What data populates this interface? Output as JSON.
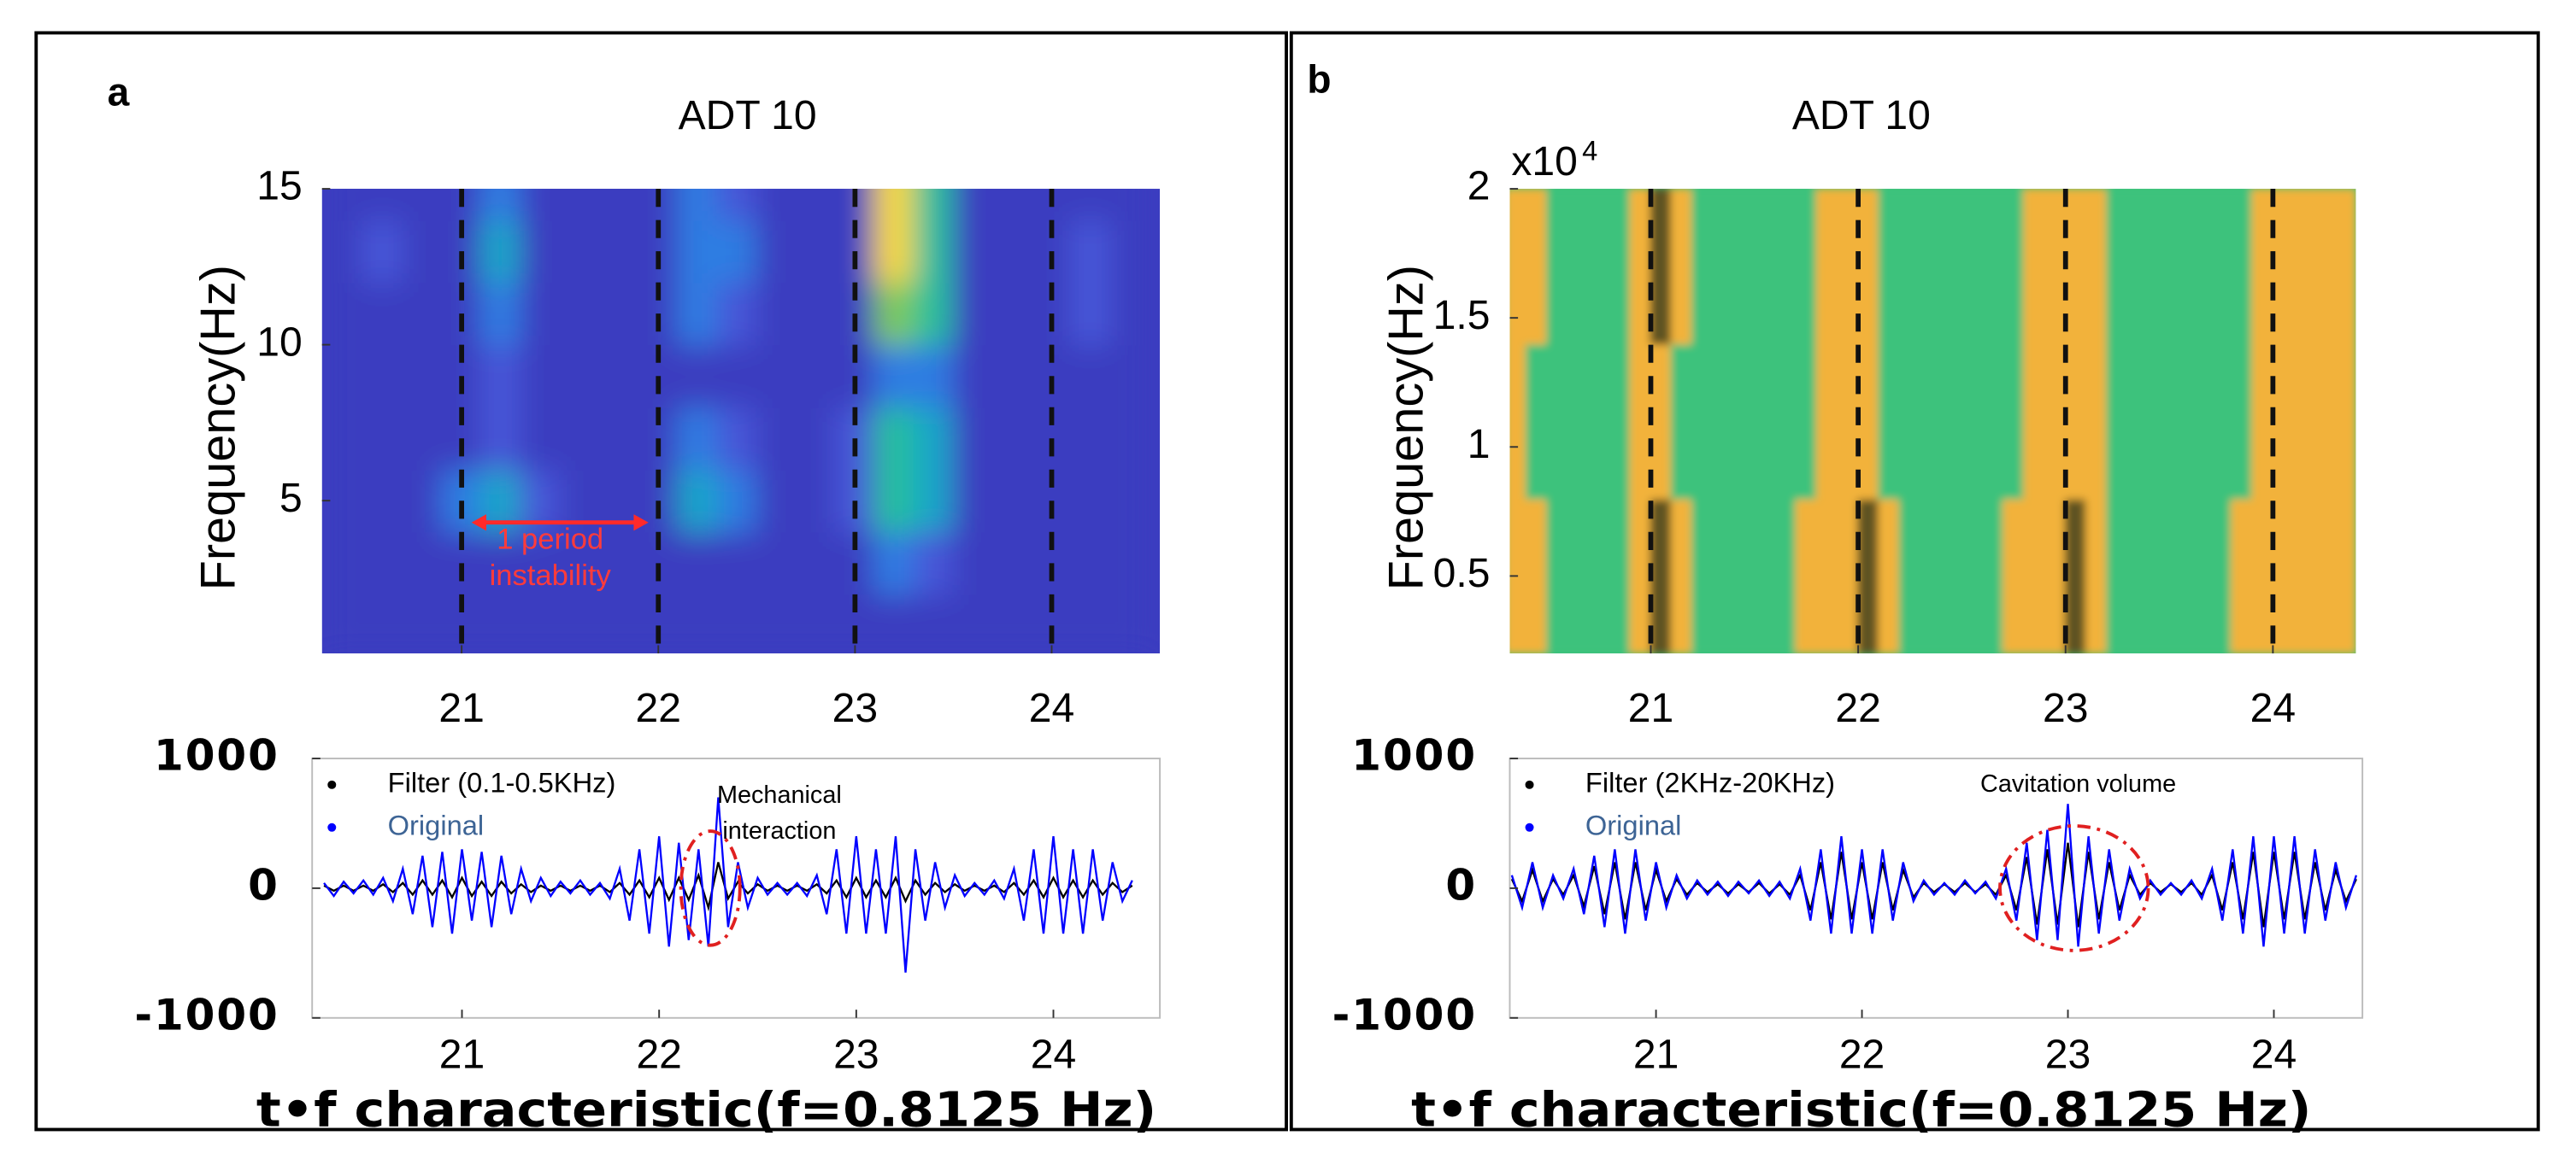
{
  "chart_data": [
    {
      "type": "contour",
      "panel": "a",
      "title": "ADT 10",
      "ylabel": "Frequency(Hz)",
      "xlim": [
        20.29,
        24.55
      ],
      "ylim": [
        0.1,
        15
      ],
      "xticks": [
        21,
        22,
        23,
        24
      ],
      "yticks": [
        5,
        10,
        15
      ],
      "x": [
        20.4,
        20.6,
        20.8,
        21.0,
        21.2,
        21.4,
        21.6,
        21.8,
        22.0,
        22.2,
        22.4,
        22.6,
        22.8,
        23.0,
        23.2,
        23.4,
        23.6,
        23.8,
        24.0,
        24.2,
        24.4
      ],
      "y": [
        1,
        3,
        5,
        7,
        9,
        11,
        13,
        15
      ],
      "z": [
        [
          0,
          0,
          0,
          0,
          0,
          0,
          0,
          0,
          0,
          0,
          0,
          0,
          0,
          0,
          0,
          0,
          0,
          0,
          0,
          0,
          0
        ],
        [
          0,
          0,
          0,
          0,
          0.1,
          0,
          0,
          0,
          0,
          0,
          0.1,
          0,
          0,
          0.1,
          0.25,
          0.2,
          0,
          0,
          0,
          0,
          0
        ],
        [
          0,
          0,
          0,
          0.25,
          0.45,
          0.2,
          0,
          0,
          0,
          0.45,
          0.35,
          0,
          0,
          0.2,
          0.55,
          0.45,
          0,
          0,
          0,
          0,
          0
        ],
        [
          0,
          0,
          0,
          0.1,
          0.2,
          0.05,
          0,
          0,
          0,
          0.25,
          0.2,
          0,
          0,
          0.2,
          0.5,
          0.4,
          0,
          0,
          0,
          0,
          0
        ],
        [
          0,
          0,
          0,
          0.05,
          0.2,
          0.05,
          0,
          0,
          0,
          0.05,
          0.05,
          0,
          0,
          0.1,
          0.35,
          0.3,
          0,
          0,
          0,
          0,
          0
        ],
        [
          0,
          0,
          0,
          0.1,
          0.35,
          0.1,
          0,
          0,
          0,
          0.3,
          0.2,
          0,
          0,
          0.1,
          0.65,
          0.5,
          0,
          0,
          0,
          0.15,
          0.05
        ],
        [
          0,
          0.15,
          0,
          0.1,
          0.4,
          0.1,
          0,
          0,
          0,
          0.35,
          0.25,
          0,
          0.12,
          0.1,
          0.9,
          0.6,
          0,
          0,
          0,
          0.15,
          0.05
        ],
        [
          0,
          0,
          0,
          0.1,
          0.35,
          0.1,
          0,
          0,
          0,
          0.3,
          0.2,
          0,
          0.1,
          0.1,
          1,
          0.6,
          0,
          0,
          0,
          0.05,
          0
        ]
      ],
      "colormap": [
        "#3b3cc0",
        "#4656d8",
        "#2f7de2",
        "#16a6c9",
        "#28bf9c",
        "#7fca58",
        "#c8c833",
        "#f9d92d"
      ],
      "vlines": [
        21,
        22,
        23,
        24
      ],
      "annotations": [
        {
          "kind": "double-arrow",
          "x": [
            21.05,
            21.95
          ],
          "y": 4.3,
          "color": "#ff2a2a"
        },
        {
          "kind": "text",
          "lines": [
            "1 period",
            "instability"
          ],
          "x": 21.45,
          "y": 3.7,
          "color": "#ff3b3b"
        }
      ]
    },
    {
      "type": "line",
      "xlabel": "t•f characteristic(f=0.8125 Hz)",
      "xlim": [
        20.24,
        24.54
      ],
      "ylim": [
        -1000,
        1000
      ],
      "xticks": [
        21,
        22,
        23,
        24
      ],
      "yticks": [
        -1000,
        0,
        1000
      ],
      "legend": "top-left",
      "x": [
        20.3,
        20.35,
        20.4,
        20.45,
        20.5,
        20.55,
        20.6,
        20.65,
        20.7,
        20.75,
        20.8,
        20.85,
        20.9,
        20.95,
        21,
        21.05,
        21.1,
        21.15,
        21.2,
        21.25,
        21.3,
        21.35,
        21.4,
        21.45,
        21.5,
        21.55,
        21.6,
        21.65,
        21.7,
        21.75,
        21.8,
        21.85,
        21.9,
        21.95,
        22,
        22.05,
        22.1,
        22.15,
        22.2,
        22.25,
        22.3,
        22.35,
        22.4,
        22.45,
        22.5,
        22.55,
        22.6,
        22.65,
        22.7,
        22.75,
        22.8,
        22.85,
        22.9,
        22.95,
        23,
        23.05,
        23.1,
        23.15,
        23.2,
        23.25,
        23.3,
        23.35,
        23.4,
        23.45,
        23.5,
        23.55,
        23.6,
        23.65,
        23.7,
        23.75,
        23.8,
        23.85,
        23.9,
        23.95,
        24,
        24.05,
        24.1,
        24.15,
        24.2,
        24.25,
        24.3,
        24.35,
        24.4
      ],
      "series": [
        {
          "name": "Filter (0.1-0.5KHz)",
          "color": "#000000",
          "label_color": "#000000",
          "values": [
            20,
            -20,
            20,
            -20,
            20,
            -20,
            30,
            -30,
            40,
            -50,
            60,
            -50,
            60,
            -70,
            80,
            -60,
            50,
            -60,
            50,
            -40,
            30,
            -30,
            20,
            -20,
            20,
            -20,
            20,
            -20,
            20,
            -30,
            40,
            -50,
            60,
            -70,
            80,
            -90,
            80,
            -90,
            100,
            -150,
            200,
            -80,
            50,
            -40,
            30,
            -20,
            20,
            -20,
            20,
            -20,
            30,
            -40,
            60,
            -70,
            80,
            -70,
            60,
            -70,
            80,
            -100,
            60,
            -50,
            40,
            -30,
            30,
            -20,
            20,
            -20,
            20,
            -30,
            40,
            -50,
            60,
            -70,
            80,
            -70,
            60,
            -70,
            60,
            -50,
            40,
            -30,
            20
          ]
        },
        {
          "name": "Original",
          "color": "#0000ff",
          "label_color": "#3d6495",
          "values": [
            40,
            -60,
            50,
            -40,
            60,
            -50,
            80,
            -100,
            150,
            -200,
            250,
            -300,
            280,
            -350,
            300,
            -250,
            280,
            -300,
            250,
            -200,
            150,
            -100,
            80,
            -60,
            50,
            -40,
            60,
            -50,
            40,
            -80,
            150,
            -250,
            300,
            -350,
            400,
            -450,
            350,
            -400,
            300,
            -450,
            700,
            -300,
            200,
            -150,
            80,
            -50,
            40,
            -50,
            40,
            -60,
            100,
            -200,
            300,
            -350,
            400,
            -350,
            300,
            -350,
            400,
            -650,
            300,
            -250,
            200,
            -150,
            100,
            -60,
            40,
            -50,
            60,
            -80,
            150,
            -250,
            300,
            -350,
            400,
            -350,
            300,
            -350,
            300,
            -250,
            200,
            -100,
            60
          ]
        }
      ],
      "annotations": [
        {
          "kind": "ellipse",
          "x": 22.26,
          "y": 0,
          "rx": 0.15,
          "ry": 440,
          "color": "#e02020"
        },
        {
          "kind": "text",
          "lines": [
            "Mechanical",
            "interaction"
          ],
          "x": 22.61,
          "y": 709,
          "color": "#000000"
        }
      ]
    },
    {
      "type": "heatmap",
      "panel": "b",
      "title": "ADT 10",
      "ylabel": "Frequency(Hz)",
      "y_multiplier": {
        "base": "x10",
        "exponent": "4"
      },
      "xlim": [
        20.32,
        24.4
      ],
      "ylim": [
        0.2,
        2
      ],
      "xticks": [
        21,
        22,
        23,
        24
      ],
      "yticks": [
        0.5,
        1,
        1.5,
        2
      ],
      "x": [
        20.35,
        20.45,
        20.55,
        20.65,
        20.75,
        20.85,
        20.95,
        21.05,
        21.15,
        21.25,
        21.35,
        21.45,
        21.55,
        21.65,
        21.75,
        21.85,
        21.95,
        22.05,
        22.15,
        22.25,
        22.35,
        22.45,
        22.55,
        22.65,
        22.75,
        22.85,
        22.95,
        23.05,
        23.15,
        23.25,
        23.35,
        23.45,
        23.55,
        23.65,
        23.75,
        23.85,
        23.95,
        24.05,
        24.15,
        24.25,
        24.35
      ],
      "y": [
        0.5,
        1.1,
        1.7
      ],
      "z": [
        [
          0.6,
          0.5,
          0.2,
          0.1,
          0.1,
          0.1,
          0.6,
          0.8,
          0.3,
          0.1,
          0.1,
          0.1,
          0.1,
          0.1,
          0.4,
          0.6,
          0.7,
          0.8,
          0.3,
          0.1,
          0.1,
          0.1,
          0.1,
          0.1,
          0.3,
          0.6,
          0.7,
          0.8,
          0.6,
          0.2,
          0.1,
          0.1,
          0.1,
          0.1,
          0.1,
          0.3,
          0.6,
          0.7,
          0.6,
          0.7,
          0.6
        ],
        [
          0.3,
          0.2,
          0.1,
          0.1,
          0.1,
          0.1,
          0.5,
          0.7,
          0.2,
          0.1,
          0.1,
          0.1,
          0.1,
          0.1,
          0.1,
          0.5,
          0.6,
          0.7,
          0.2,
          0.1,
          0.1,
          0.1,
          0.1,
          0.1,
          0.1,
          0.5,
          0.6,
          0.7,
          0.5,
          0.15,
          0.1,
          0.1,
          0.1,
          0.1,
          0.1,
          0.1,
          0.5,
          0.6,
          0.5,
          0.6,
          0.5
        ],
        [
          0.3,
          0.3,
          0.2,
          0.1,
          0.1,
          0.1,
          0.6,
          0.8,
          0.3,
          0.15,
          0.15,
          0.15,
          0.15,
          0.15,
          0.15,
          0.4,
          0.6,
          0.5,
          0.2,
          0.15,
          0.15,
          0.15,
          0.15,
          0.15,
          0.15,
          0.5,
          0.7,
          0.7,
          0.5,
          0.2,
          0.15,
          0.15,
          0.15,
          0.15,
          0.15,
          0.15,
          0.5,
          0.7,
          0.6,
          0.7,
          0.6
        ]
      ],
      "colormap": [
        "#3cc27c",
        "#f2b23a",
        "#f2b23a",
        "#5e5220"
      ],
      "vlines": [
        21,
        22,
        23,
        24
      ]
    },
    {
      "type": "line",
      "xlabel": "t•f characteristic(f=0.8125 Hz)",
      "xlim": [
        20.29,
        24.43
      ],
      "ylim": [
        -1000,
        1000
      ],
      "xticks": [
        21,
        22,
        23,
        24
      ],
      "yticks": [
        -1000,
        0,
        1000
      ],
      "legend": "top-left",
      "x": [
        20.3,
        20.35,
        20.4,
        20.45,
        20.5,
        20.55,
        20.6,
        20.65,
        20.7,
        20.75,
        20.8,
        20.85,
        20.9,
        20.95,
        21,
        21.05,
        21.1,
        21.15,
        21.2,
        21.25,
        21.3,
        21.35,
        21.4,
        21.45,
        21.5,
        21.55,
        21.6,
        21.65,
        21.7,
        21.75,
        21.8,
        21.85,
        21.9,
        21.95,
        22,
        22.05,
        22.1,
        22.15,
        22.2,
        22.25,
        22.3,
        22.35,
        22.4,
        22.45,
        22.5,
        22.55,
        22.6,
        22.65,
        22.7,
        22.75,
        22.8,
        22.85,
        22.9,
        22.95,
        23,
        23.05,
        23.1,
        23.15,
        23.2,
        23.25,
        23.3,
        23.35,
        23.4,
        23.45,
        23.5,
        23.55,
        23.6,
        23.65,
        23.7,
        23.75,
        23.8,
        23.85,
        23.9,
        23.95,
        24,
        24.05,
        24.1,
        24.15,
        24.2,
        24.25,
        24.3,
        24.35,
        24.4
      ],
      "series": [
        {
          "name": "Filter (2KHz-20KHz)",
          "color": "#000000",
          "label_color": "#000000",
          "values": [
            70,
            -100,
            140,
            -100,
            70,
            -50,
            100,
            -140,
            170,
            -200,
            200,
            -240,
            200,
            -170,
            140,
            -100,
            70,
            -50,
            40,
            -30,
            30,
            -40,
            30,
            -30,
            40,
            -40,
            30,
            -50,
            100,
            -170,
            200,
            -240,
            280,
            -240,
            200,
            -240,
            200,
            -170,
            140,
            -70,
            40,
            -30,
            30,
            -30,
            40,
            -30,
            30,
            -50,
            100,
            -170,
            240,
            -280,
            300,
            -280,
            350,
            -300,
            280,
            -240,
            200,
            -170,
            100,
            -50,
            40,
            -30,
            30,
            -30,
            40,
            -50,
            100,
            -170,
            200,
            -240,
            280,
            -300,
            280,
            -240,
            280,
            -240,
            200,
            -170,
            140,
            -100,
            70
          ]
        },
        {
          "name": "Original",
          "color": "#0000ff",
          "label_color": "#3d6495",
          "values": [
            100,
            -150,
            200,
            -150,
            100,
            -80,
            150,
            -200,
            250,
            -300,
            300,
            -350,
            300,
            -250,
            200,
            -150,
            100,
            -80,
            60,
            -50,
            50,
            -60,
            50,
            -40,
            60,
            -60,
            50,
            -80,
            150,
            -250,
            300,
            -350,
            400,
            -350,
            300,
            -350,
            300,
            -250,
            200,
            -100,
            60,
            -50,
            40,
            -50,
            60,
            -40,
            50,
            -80,
            150,
            -250,
            350,
            -400,
            450,
            -400,
            650,
            -450,
            400,
            -350,
            300,
            -250,
            150,
            -80,
            60,
            -50,
            40,
            -50,
            60,
            -80,
            150,
            -250,
            300,
            -350,
            400,
            -450,
            400,
            -350,
            400,
            -350,
            300,
            -250,
            200,
            -150,
            100
          ]
        }
      ],
      "annotations": [
        {
          "kind": "ellipse",
          "x": 23.03,
          "y": 0,
          "rx": 0.36,
          "ry": 480,
          "color": "#e02020"
        },
        {
          "kind": "text",
          "lines": [
            "Cavitation volume"
          ],
          "x": 23.05,
          "y": 795,
          "color": "#000000"
        }
      ]
    }
  ]
}
